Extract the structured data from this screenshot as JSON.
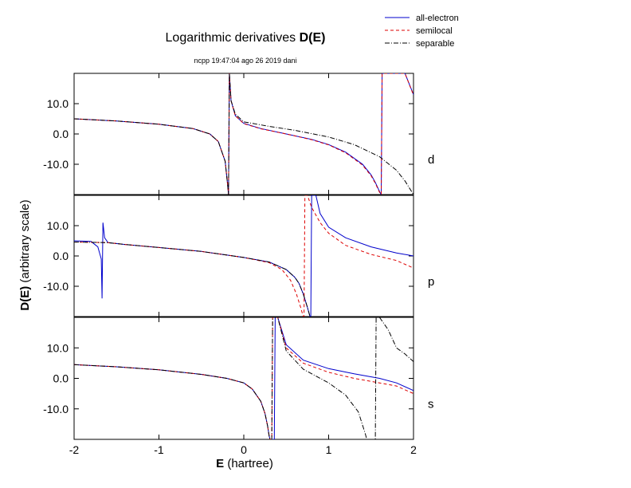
{
  "header": {
    "title_prefix": "Logarithmic derivatives ",
    "title_bold": "D(E)",
    "subtitle": "ncpp 19:47:04 ago 26 2019 dani"
  },
  "legend": {
    "items": [
      {
        "label": "all-electron",
        "color": "#0000cc",
        "dash": "solid"
      },
      {
        "label": "semilocal",
        "color": "#dd0000",
        "dash": "dash"
      },
      {
        "label": "separable",
        "color": "#000000",
        "dash": "dashdot"
      }
    ]
  },
  "axes": {
    "xlabel_bold": "E",
    "xlabel_rest": " (hartree)",
    "ylabel_bold": "D(E)",
    "ylabel_rest": "  (arbitrary scale)"
  },
  "chart_data": {
    "type": "line",
    "title": "Logarithmic derivatives D(E)",
    "xlabel": "E (hartree)",
    "ylabel": "D(E)  (arbitrary scale)",
    "xlim": [
      -2,
      2
    ],
    "ylim": [
      -20,
      20
    ],
    "x_ticks": [
      -2,
      -1,
      0,
      1,
      2
    ],
    "x_tick_labels": [
      "-2",
      "-1",
      "0",
      "1",
      "2"
    ],
    "y_ticks": [
      10,
      0,
      -10
    ],
    "y_tick_labels": [
      "10.0",
      "0.0",
      "-10.0"
    ],
    "grid": false,
    "legend_position": "top-right",
    "panels": [
      {
        "channel": "d",
        "series": [
          {
            "name": "all-electron",
            "x": [
              -2.0,
              -1.5,
              -1.0,
              -0.6,
              -0.4,
              -0.3,
              -0.22,
              -0.19,
              -0.18,
              -0.17,
              -0.15,
              -0.1,
              0.0,
              0.2,
              0.5,
              0.8,
              1.0,
              1.2,
              1.4,
              1.5,
              1.55,
              1.6,
              1.62,
              1.63,
              1.65,
              1.7,
              1.8,
              1.9,
              2.0
            ],
            "y": [
              5.0,
              4.3,
              3.2,
              1.8,
              0.0,
              -2.5,
              -9.0,
              -17.0,
              -20.0,
              20.0,
              11.0,
              6.0,
              3.5,
              1.8,
              0.0,
              -1.8,
              -3.5,
              -6.0,
              -10.0,
              -13.5,
              -16.0,
              -19.0,
              -20.0,
              20.0,
              20.0,
              20.0,
              20.0,
              20.0,
              13.0
            ]
          },
          {
            "name": "semilocal",
            "x": [
              -2.0,
              -1.5,
              -1.0,
              -0.6,
              -0.4,
              -0.3,
              -0.22,
              -0.19,
              -0.18,
              -0.17,
              -0.15,
              -0.1,
              0.0,
              0.2,
              0.5,
              0.8,
              1.0,
              1.2,
              1.4,
              1.5,
              1.55,
              1.6,
              1.62,
              1.63,
              1.65,
              1.7,
              1.8,
              1.9,
              2.0
            ],
            "y": [
              5.0,
              4.3,
              3.2,
              1.8,
              0.0,
              -2.5,
              -9.0,
              -17.0,
              -20.0,
              20.0,
              11.0,
              6.0,
              3.4,
              1.7,
              0.0,
              -1.9,
              -3.6,
              -6.2,
              -10.3,
              -13.8,
              -16.3,
              -19.3,
              -20.0,
              20.0,
              20.0,
              20.0,
              20.0,
              20.0,
              12.8
            ]
          },
          {
            "name": "separable",
            "x": [
              -2.0,
              -1.5,
              -1.0,
              -0.6,
              -0.4,
              -0.3,
              -0.22,
              -0.19,
              -0.18,
              -0.17,
              -0.15,
              -0.1,
              0.0,
              0.3,
              0.6,
              1.0,
              1.3,
              1.6,
              1.8,
              1.9,
              2.0
            ],
            "y": [
              5.0,
              4.3,
              3.2,
              1.8,
              0.0,
              -2.5,
              -9.0,
              -17.0,
              -20.0,
              20.0,
              11.0,
              6.5,
              4.0,
              2.5,
              1.2,
              -1.0,
              -3.5,
              -7.5,
              -12.0,
              -15.5,
              -20.0
            ]
          }
        ]
      },
      {
        "channel": "p",
        "series": [
          {
            "name": "all-electron",
            "x": [
              -2.0,
              -1.8,
              -1.72,
              -1.68,
              -1.67,
              -1.66,
              -1.64,
              -1.6,
              -1.4,
              -1.0,
              -0.5,
              0.0,
              0.3,
              0.5,
              0.6,
              0.65,
              0.7,
              0.75,
              0.78,
              0.79,
              0.8,
              0.81,
              0.85,
              0.9,
              1.0,
              1.2,
              1.5,
              1.8,
              2.0
            ],
            "y": [
              5.0,
              4.8,
              3.0,
              -1.0,
              -14.0,
              11.0,
              6.0,
              4.4,
              3.8,
              2.8,
              1.5,
              -0.5,
              -2.0,
              -4.5,
              -7.0,
              -9.0,
              -12.5,
              -17.0,
              -20.0,
              -20.0,
              20.0,
              20.0,
              20.0,
              14.0,
              9.5,
              6.0,
              3.0,
              1.0,
              0.0
            ]
          },
          {
            "name": "semilocal",
            "x": [
              -2.0,
              -1.8,
              -1.6,
              -1.4,
              -1.0,
              -0.5,
              0.0,
              0.3,
              0.45,
              0.55,
              0.62,
              0.67,
              0.7,
              0.71,
              0.72,
              0.75,
              0.8,
              0.9,
              1.0,
              1.2,
              1.5,
              1.8,
              2.0
            ],
            "y": [
              4.6,
              4.5,
              4.4,
              3.8,
              2.8,
              1.5,
              -0.5,
              -2.2,
              -4.5,
              -8.0,
              -12.5,
              -17.0,
              -20.0,
              -20.0,
              20.0,
              20.0,
              16.0,
              11.0,
              7.5,
              3.5,
              0.5,
              -1.5,
              -4.0
            ]
          },
          {
            "name": "separable",
            "x": [
              -2.0,
              -1.8,
              -1.6,
              -1.4,
              -1.0,
              -0.5,
              0.0,
              0.3,
              0.5,
              0.6,
              0.65,
              0.7,
              0.75,
              0.78
            ],
            "y": [
              4.6,
              4.5,
              4.4,
              3.8,
              2.8,
              1.5,
              -0.5,
              -2.0,
              -4.5,
              -7.0,
              -9.0,
              -12.5,
              -17.0,
              -20.0
            ]
          }
        ]
      },
      {
        "channel": "s",
        "series": [
          {
            "name": "all-electron",
            "x": [
              -2.0,
              -1.5,
              -1.0,
              -0.5,
              -0.2,
              0.0,
              0.1,
              0.2,
              0.25,
              0.28,
              0.3,
              0.31,
              0.36,
              0.37,
              0.38,
              0.4,
              0.5,
              0.7,
              1.0,
              1.3,
              1.6,
              1.8,
              2.0
            ],
            "y": [
              4.5,
              3.8,
              2.8,
              1.3,
              0.0,
              -1.5,
              -3.5,
              -7.5,
              -11.5,
              -15.5,
              -19.0,
              -20.0,
              -20.0,
              20.0,
              20.0,
              20.0,
              11.0,
              6.0,
              3.2,
              1.5,
              0.0,
              -1.5,
              -4.0
            ]
          },
          {
            "name": "semilocal",
            "x": [
              -2.0,
              -1.5,
              -1.0,
              -0.5,
              -0.2,
              0.0,
              0.1,
              0.2,
              0.25,
              0.28,
              0.3,
              0.31,
              0.33,
              0.34,
              0.36,
              0.4,
              0.5,
              0.7,
              1.0,
              1.3,
              1.6,
              1.8,
              2.0
            ],
            "y": [
              4.5,
              3.8,
              2.8,
              1.3,
              0.0,
              -1.5,
              -3.5,
              -7.5,
              -11.5,
              -15.5,
              -19.0,
              -20.0,
              -20.0,
              20.0,
              20.0,
              20.0,
              10.0,
              5.0,
              2.0,
              0.0,
              -1.5,
              -2.5,
              -5.0
            ]
          },
          {
            "name": "separable",
            "x": [
              -2.0,
              -1.5,
              -1.0,
              -0.5,
              -0.2,
              0.0,
              0.1,
              0.2,
              0.25,
              0.28,
              0.3,
              0.31,
              0.33,
              0.34,
              0.36,
              0.4,
              0.5,
              0.7,
              1.0,
              1.2,
              1.35,
              1.43,
              1.45,
              1.55,
              1.56,
              1.57,
              1.6,
              1.7,
              1.8,
              1.9,
              2.0
            ],
            "y": [
              4.5,
              3.8,
              2.8,
              1.3,
              0.0,
              -1.5,
              -3.5,
              -7.5,
              -11.5,
              -15.5,
              -19.0,
              -20.0,
              -20.0,
              20.0,
              20.0,
              20.0,
              9.0,
              3.0,
              -1.5,
              -5.5,
              -11.0,
              -18.0,
              -20.0,
              -20.0,
              20.0,
              20.0,
              20.0,
              16.0,
              10.0,
              8.0,
              5.5
            ]
          }
        ]
      }
    ]
  }
}
